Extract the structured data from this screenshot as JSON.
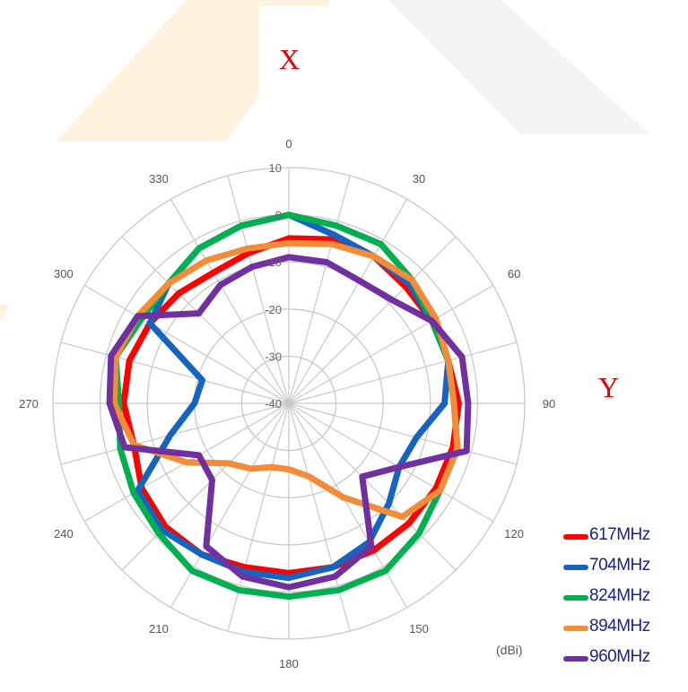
{
  "annotations": {
    "x_label": "X",
    "y_label": "Y"
  },
  "chart_data": {
    "type": "line",
    "subtype": "polar",
    "unit_label": "(dBi)",
    "angular_ticks": [
      "0",
      "30",
      "60",
      "90",
      "120",
      "150",
      "180",
      "210",
      "240",
      "270",
      "300",
      "330"
    ],
    "radial_ticks": [
      "10",
      "0",
      "-10",
      "-20",
      "-30",
      "-40"
    ],
    "rlim": [
      -40,
      10
    ],
    "grid": true,
    "legend_position": "bottom-right",
    "angles_deg": [
      0,
      15,
      30,
      45,
      60,
      75,
      90,
      105,
      120,
      135,
      150,
      165,
      180,
      195,
      210,
      225,
      240,
      255,
      270,
      285,
      300,
      315,
      330,
      345
    ],
    "series": [
      {
        "name": "617MHz",
        "color": "#ff0000",
        "values": [
          -5,
          -4,
          -4,
          -5,
          -5,
          -5,
          -4,
          -4,
          -4,
          -4,
          -4,
          -4,
          -4,
          -4,
          -3,
          -3,
          -4,
          -6,
          -5,
          -5,
          -6,
          -7,
          -8,
          -7
        ]
      },
      {
        "name": "704MHz",
        "color": "#1565c0",
        "values": [
          0,
          -3,
          -4,
          -4,
          -5,
          -5,
          -7,
          -12,
          -13,
          -10,
          -6,
          -4,
          -3,
          -3,
          -3,
          -2,
          -3,
          -14,
          -20,
          -21,
          -6,
          -4,
          -2,
          -1
        ]
      },
      {
        "name": "824MHz",
        "color": "#00b050",
        "values": [
          0,
          -1,
          -1,
          -3,
          -5,
          -5,
          -5,
          -3,
          -3,
          -1,
          1,
          1,
          1,
          1,
          1,
          -1,
          -2,
          -3,
          -4,
          -2,
          -4,
          -4,
          -2,
          -1
        ]
      },
      {
        "name": "894MHz",
        "color": "#f28c38",
        "values": [
          -6,
          -5,
          -4,
          -3,
          -4,
          -5,
          -5,
          -3,
          -3,
          -6,
          -17,
          -24,
          -26,
          -26,
          -24,
          -22,
          -15,
          -6,
          -3,
          -2,
          -3,
          -4,
          -5,
          -6
        ]
      },
      {
        "name": "960MHz",
        "color": "#7030a0",
        "values": [
          -9,
          -9,
          -10,
          -9,
          -5,
          -2,
          -2,
          -1,
          -13,
          -18,
          -5,
          -2,
          -1,
          -2,
          -5,
          -17,
          -18,
          -4,
          -2,
          -1,
          -3,
          -13,
          -11,
          -10
        ]
      }
    ]
  }
}
